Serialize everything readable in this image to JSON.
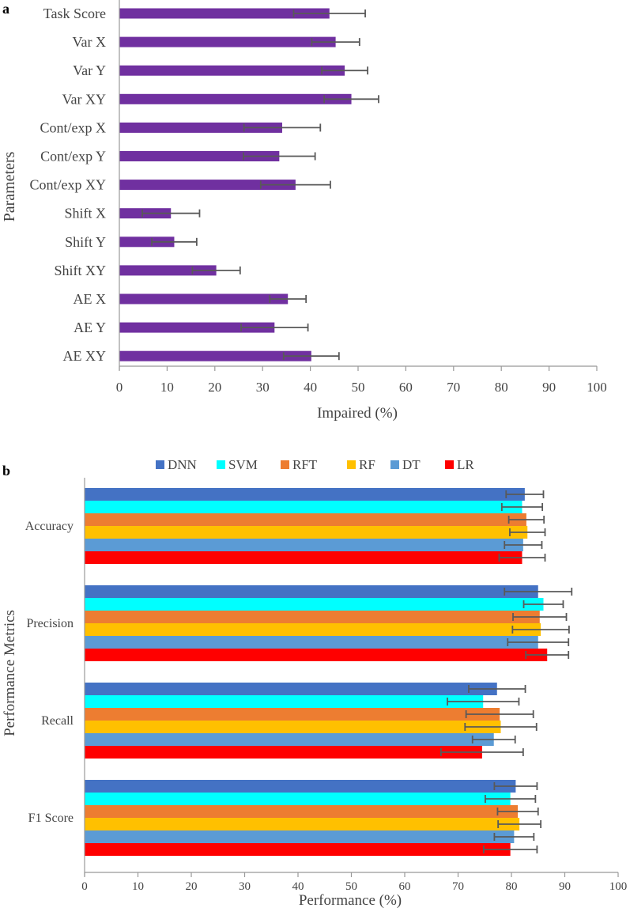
{
  "panels": {
    "a_label": "a",
    "b_label": "b"
  },
  "chart_data": [
    {
      "type": "bar",
      "orientation": "horizontal",
      "panel": "a",
      "title": "",
      "xlabel": "Impaired (%)",
      "ylabel": "Parameters",
      "xlim": [
        0,
        100
      ],
      "xticks": [
        0,
        10,
        20,
        30,
        40,
        50,
        60,
        70,
        80,
        90,
        100
      ],
      "grid": false,
      "categories": [
        "Task Score",
        "Var X",
        "Var Y",
        "Var XY",
        "Cont/exp X",
        "Cont/exp Y",
        "Cont/exp XY",
        "Shift X",
        "Shift Y",
        "Shift XY",
        "AE X",
        "AE Y",
        "AE XY"
      ],
      "values": [
        44.0,
        45.3,
        47.2,
        48.6,
        34.1,
        33.5,
        36.9,
        10.8,
        11.5,
        20.3,
        35.3,
        32.5,
        40.2
      ],
      "errors": [
        7.5,
        5.0,
        4.8,
        5.7,
        8.0,
        7.5,
        7.3,
        6.0,
        4.7,
        5.0,
        3.8,
        7.0,
        5.8
      ],
      "color": "#7030a0"
    },
    {
      "type": "bar",
      "orientation": "horizontal",
      "panel": "b",
      "title": "",
      "xlabel": "Performance (%)",
      "ylabel": "Performance Metrics",
      "xlim": [
        0,
        100
      ],
      "xticks": [
        0,
        10,
        20,
        30,
        40,
        50,
        60,
        70,
        80,
        90,
        100
      ],
      "grid": false,
      "legend_position": "top-center",
      "categories": [
        "Accuracy",
        "Precision",
        "Recall",
        "F1 Score"
      ],
      "series": [
        {
          "name": "DNN",
          "color": "#4472c4",
          "values": [
            82.5,
            85.0,
            77.3,
            80.8
          ],
          "errors": [
            3.5,
            6.3,
            5.3,
            4.0
          ]
        },
        {
          "name": "SVM",
          "color": "#00ffff",
          "values": [
            82.0,
            86.0,
            74.7,
            79.8
          ],
          "errors": [
            3.8,
            3.7,
            6.7,
            4.7
          ]
        },
        {
          "name": "RFT",
          "color": "#ed7d31",
          "values": [
            82.8,
            85.3,
            77.8,
            81.2
          ],
          "errors": [
            3.3,
            5.0,
            6.3,
            3.8
          ]
        },
        {
          "name": "RF",
          "color": "#ffc000",
          "values": [
            83.0,
            85.5,
            78.0,
            81.5
          ],
          "errors": [
            3.3,
            5.3,
            6.7,
            4.0
          ]
        },
        {
          "name": "DT",
          "color": "#5b9bd5",
          "values": [
            82.2,
            85.0,
            76.7,
            80.5
          ],
          "errors": [
            3.5,
            5.7,
            4.0,
            3.7
          ]
        },
        {
          "name": "LR",
          "color": "#ff0000",
          "values": [
            82.0,
            86.7,
            74.5,
            79.8
          ],
          "errors": [
            4.3,
            4.0,
            7.7,
            5.0
          ]
        }
      ]
    }
  ]
}
